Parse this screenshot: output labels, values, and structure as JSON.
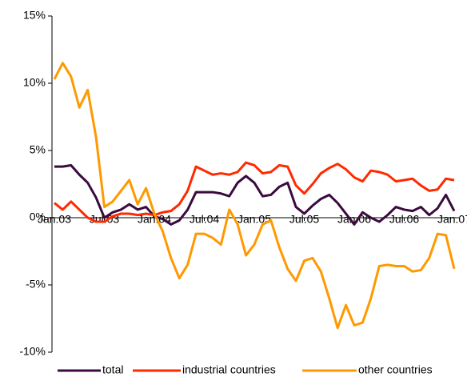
{
  "chart_data": {
    "type": "line",
    "categories": [
      "Jan.03",
      null,
      null,
      null,
      null,
      null,
      "Jul.03",
      null,
      null,
      null,
      null,
      null,
      "Jan.04",
      null,
      null,
      null,
      null,
      null,
      "Jul.04",
      null,
      null,
      null,
      null,
      null,
      "Jan.05",
      null,
      null,
      null,
      null,
      null,
      "Jul.05",
      null,
      null,
      null,
      null,
      null,
      "Jan.06",
      null,
      null,
      null,
      null,
      null,
      "Jul.06",
      null,
      null,
      null,
      null,
      null,
      "Jan.07"
    ],
    "series": [
      {
        "name": "total",
        "color": "#3b0a3e",
        "values": [
          3.8,
          3.8,
          3.9,
          3.2,
          2.6,
          1.5,
          0.0,
          0.4,
          0.6,
          1.0,
          0.6,
          0.8,
          0.1,
          -0.1,
          -0.5,
          -0.2,
          0.6,
          1.9,
          1.9,
          1.9,
          1.8,
          1.6,
          2.6,
          3.1,
          2.6,
          1.6,
          1.7,
          2.3,
          2.6,
          0.8,
          0.3,
          0.9,
          1.4,
          1.7,
          1.1,
          0.3,
          -0.5,
          0.4,
          0.0,
          -0.3,
          0.2,
          0.8,
          0.6,
          0.5,
          0.8,
          0.2,
          0.7,
          1.7,
          0.5
        ]
      },
      {
        "name": "industrial countries",
        "color": "#ff2a00",
        "values": [
          1.1,
          0.6,
          1.2,
          0.6,
          0.0,
          -0.3,
          -0.3,
          0.1,
          0.3,
          0.3,
          0.2,
          0.3,
          0.2,
          0.4,
          0.5,
          1.0,
          2.0,
          3.8,
          3.5,
          3.2,
          3.3,
          3.2,
          3.4,
          4.1,
          3.9,
          3.3,
          3.4,
          3.9,
          3.8,
          2.4,
          1.8,
          2.5,
          3.3,
          3.7,
          4.0,
          3.6,
          3.0,
          2.7,
          3.5,
          3.4,
          3.2,
          2.7,
          2.8,
          2.9,
          2.4,
          2.0,
          2.1,
          2.9,
          2.8
        ]
      },
      {
        "name": "other countries",
        "color": "#ff9900",
        "values": [
          10.3,
          11.5,
          10.5,
          8.2,
          9.5,
          6.0,
          0.8,
          1.2,
          2.0,
          2.8,
          1.0,
          2.2,
          0.3,
          -1.0,
          -3.0,
          -4.5,
          -3.5,
          -1.2,
          -1.2,
          -1.5,
          -2.0,
          0.6,
          -0.5,
          -2.8,
          -2.0,
          -0.5,
          -0.2,
          -2.2,
          -3.8,
          -4.7,
          -3.2,
          -3.0,
          -4.0,
          -6.0,
          -8.2,
          -6.5,
          -8.0,
          -7.8,
          -6.0,
          -3.6,
          -3.5,
          -3.6,
          -3.6,
          -4.0,
          -3.9,
          -3.0,
          -1.2,
          -1.3,
          -3.8
        ]
      }
    ],
    "ylim": [
      -10,
      15
    ],
    "yticks": [
      {
        "value": -10,
        "label": "-10%"
      },
      {
        "value": -5,
        "label": "-5%"
      },
      {
        "value": 0,
        "label": "0%"
      },
      {
        "value": 5,
        "label": "5%"
      },
      {
        "value": 10,
        "label": "10%"
      },
      {
        "value": 15,
        "label": "15%"
      }
    ],
    "grid": false,
    "legend": "bottom"
  }
}
